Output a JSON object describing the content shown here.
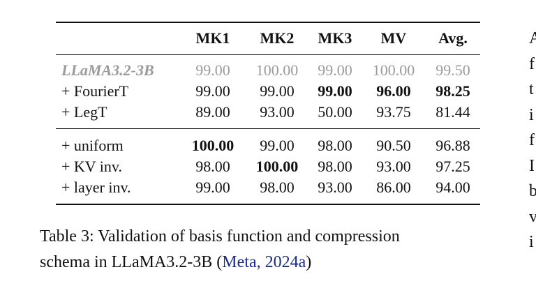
{
  "table": {
    "columns": [
      "MK1",
      "MK2",
      "MK3",
      "MV",
      "Avg."
    ],
    "groups": [
      {
        "rows": [
          {
            "label": "LLaMA3.2-3B",
            "muted": true,
            "values": [
              "99.00",
              "100.00",
              "99.00",
              "100.00",
              "99.50"
            ],
            "bold": []
          },
          {
            "label": "+ FourierT",
            "values": [
              "99.00",
              "99.00",
              "99.00",
              "96.00",
              "98.25"
            ],
            "bold": [
              2,
              3,
              4
            ]
          },
          {
            "label": "+ LegT",
            "values": [
              "89.00",
              "93.00",
              "50.00",
              "93.75",
              "81.44"
            ],
            "bold": []
          }
        ]
      },
      {
        "rows": [
          {
            "label": "+ uniform",
            "values": [
              "100.00",
              "99.00",
              "98.00",
              "90.50",
              "96.88"
            ],
            "bold": [
              0
            ]
          },
          {
            "label": "+ KV inv.",
            "values": [
              "98.00",
              "100.00",
              "98.00",
              "93.00",
              "97.25"
            ],
            "bold": [
              1
            ]
          },
          {
            "label": "+ layer inv.",
            "values": [
              "99.00",
              "98.00",
              "93.00",
              "86.00",
              "94.00"
            ],
            "bold": []
          }
        ]
      }
    ]
  },
  "caption": {
    "line1": "Table 3: Validation of basis function and compression",
    "line2": "schema in LLaMA3.2-3B (",
    "citation": "Meta, 2024a",
    "end": ")"
  },
  "side_text": [
    "A",
    "f",
    "t",
    "i",
    "f",
    "I",
    "b",
    "v",
    "i"
  ]
}
